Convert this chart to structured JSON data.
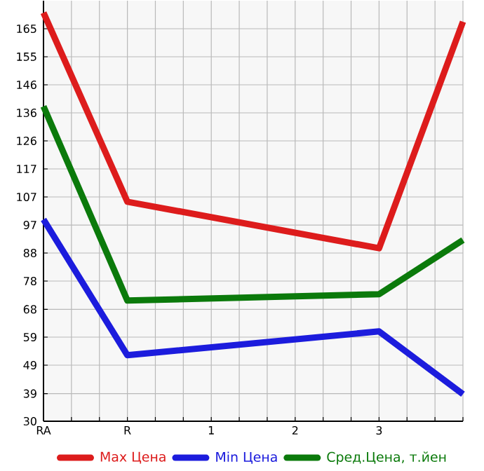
{
  "chart_data": {
    "type": "line",
    "categories": [
      "RA",
      "R",
      "1",
      "2",
      "3",
      null
    ],
    "series": [
      {
        "name": "Max Цена",
        "color": "#dd1c1c",
        "values": [
          170.5,
          105.5,
          null,
          null,
          89.5,
          167.4
        ]
      },
      {
        "name": "Min Цена",
        "color": "#1c1cdd",
        "values": [
          99.4,
          52.7,
          null,
          null,
          60.9,
          39.3
        ]
      },
      {
        "name": "Сред.Цена, т.йен",
        "color": "#0b7a0b",
        "values": [
          138.3,
          71.5,
          null,
          null,
          73.7,
          92.3
        ]
      }
    ],
    "ylim": [
      30,
      174.64
    ],
    "yticks": [
      30,
      {
        "value": 39.49,
        "label": "39"
      },
      {
        "value": 49.29,
        "label": "49"
      },
      {
        "value": 58.93,
        "label": "59"
      },
      {
        "value": 68.49,
        "label": "68"
      },
      {
        "value": 78.21,
        "label": "78"
      },
      {
        "value": 87.86,
        "label": "88"
      },
      {
        "value": 97.49,
        "label": "97"
      },
      {
        "value": 107.14,
        "label": "107"
      },
      {
        "value": 116.79,
        "label": "117"
      },
      {
        "value": 126.43,
        "label": "126"
      },
      {
        "value": 136.07,
        "label": "136"
      },
      {
        "value": 145.71,
        "label": "146"
      },
      {
        "value": 155.36,
        "label": "155"
      },
      165
    ],
    "grid": true,
    "legend": "bottom",
    "marker": "none",
    "line_style": "solid"
  }
}
